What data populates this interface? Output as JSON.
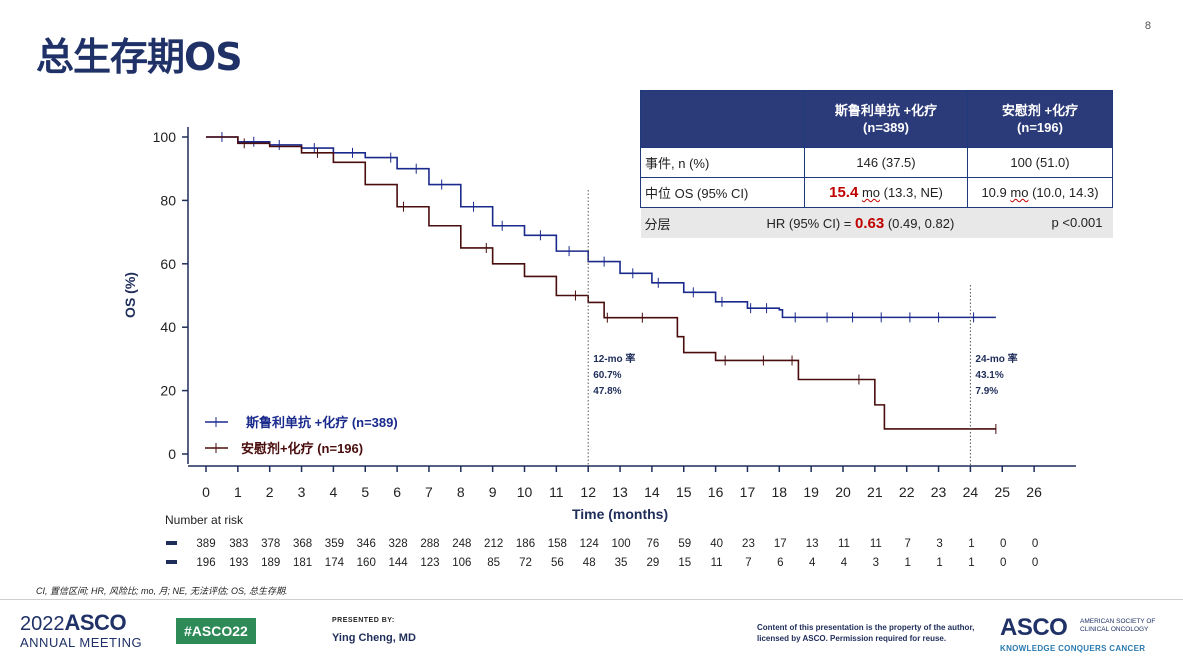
{
  "slide": {
    "title": "总生存期OS",
    "page_number": "8"
  },
  "table": {
    "headers": [
      "斯鲁利单抗 +化疗\n(n=389)",
      "安慰剂 +化疗\n(n=196)"
    ],
    "header1_line1": "斯鲁利单抗 +化疗",
    "header1_line2": "(n=389)",
    "header2_line1": "安慰剂 +化疗",
    "header2_line2": "(n=196)",
    "rows": [
      {
        "label": "事件, n (%)",
        "a": "146 (37.5)",
        "b": "100 (51.0)"
      },
      {
        "label": "中位 OS (95% CI)",
        "a_value": "15.4",
        "a_unit": "mo",
        "a_ci": "(13.3, NE)",
        "b_value": "10.9",
        "b_unit": "mo",
        "b_ci": "(10.0, 14.3)"
      }
    ],
    "strat_label": "分层",
    "hr_prefix": "HR (95% CI) = ",
    "hr_value": "0.63",
    "hr_ci": "(0.49, 0.82)",
    "p_value": "p <0.001"
  },
  "chart_data": {
    "type": "line",
    "subtype": "kaplan-meier",
    "ylabel": "OS (%)",
    "xlabel": "Time (months)",
    "xlim": [
      0,
      27
    ],
    "ylim": [
      0,
      100
    ],
    "x_ticks": [
      "0",
      "1",
      "2",
      "3",
      "4",
      "5",
      "6",
      "7",
      "8",
      "9",
      "10",
      "11",
      "12",
      "13",
      "14",
      "15",
      "16",
      "17",
      "18",
      "19",
      "20",
      "21",
      "22",
      "23",
      "24",
      "25",
      "26"
    ],
    "y_ticks": [
      "0",
      "20",
      "40",
      "60",
      "80",
      "100"
    ],
    "series": [
      {
        "name": "斯鲁利单抗 +化疗 (n=389)",
        "color": "#1a2a8c",
        "points": [
          [
            0,
            100
          ],
          [
            1,
            98.5
          ],
          [
            2,
            97.5
          ],
          [
            3,
            96.5
          ],
          [
            4,
            95
          ],
          [
            5,
            93.5
          ],
          [
            6,
            90
          ],
          [
            7,
            85
          ],
          [
            8,
            78
          ],
          [
            9,
            72
          ],
          [
            10,
            69
          ],
          [
            11,
            64
          ],
          [
            12,
            60.7
          ],
          [
            13,
            57
          ],
          [
            14,
            54
          ],
          [
            15,
            51
          ],
          [
            16,
            48
          ],
          [
            17,
            46
          ],
          [
            18,
            45.5
          ],
          [
            18.1,
            43.1
          ],
          [
            24.8,
            43.1
          ]
        ],
        "censor_x": [
          0.5,
          1.5,
          2.3,
          3.4,
          4.6,
          5.8,
          6.6,
          7.4,
          8.4,
          9.3,
          10.5,
          11.4,
          12.5,
          13.4,
          14.2,
          15.3,
          16.2,
          17.1,
          17.6,
          18.5,
          19.5,
          20.3,
          21.2,
          22.1,
          23.0,
          24.1
        ]
      },
      {
        "name": "安慰剂+化疗 (n=196)",
        "color": "#4a0d0d",
        "points": [
          [
            0,
            100
          ],
          [
            1,
            98
          ],
          [
            2,
            97
          ],
          [
            3,
            95
          ],
          [
            4,
            92
          ],
          [
            5,
            85
          ],
          [
            6,
            78
          ],
          [
            7,
            72
          ],
          [
            8,
            65
          ],
          [
            9,
            60
          ],
          [
            10,
            56
          ],
          [
            11,
            50
          ],
          [
            12,
            47.8
          ],
          [
            12.5,
            43
          ],
          [
            14.4,
            43
          ],
          [
            14.8,
            37
          ],
          [
            15,
            32
          ],
          [
            15.9,
            32
          ],
          [
            16,
            29.5
          ],
          [
            18.6,
            29.5
          ],
          [
            18.6,
            23.5
          ],
          [
            21.0,
            23.5
          ],
          [
            21.0,
            15.5
          ],
          [
            21.3,
            15.5
          ],
          [
            21.3,
            7.9
          ],
          [
            24.8,
            7.9
          ]
        ],
        "censor_x": [
          1.2,
          3.5,
          6.2,
          8.8,
          11.6,
          12.6,
          13.7,
          16.3,
          17.5,
          18.4,
          20.5,
          24.8
        ]
      }
    ],
    "annotations": [
      {
        "x": 12,
        "lines": [
          "12-mo 率",
          "60.7%",
          "47.8%"
        ]
      },
      {
        "x": 24,
        "lines": [
          "24-mo 率",
          "43.1%",
          "7.9%"
        ]
      }
    ],
    "legend": [
      "斯鲁利单抗 +化疗 (n=389)",
      "安慰剂+化疗 (n=196)"
    ],
    "risk_title": "Number at risk",
    "risk_a": [
      "389",
      "383",
      "378",
      "368",
      "359",
      "346",
      "328",
      "288",
      "248",
      "212",
      "186",
      "158",
      "124",
      "100",
      "76",
      "59",
      "40",
      "23",
      "17",
      "13",
      "11",
      "11",
      "7",
      "3",
      "1",
      "0",
      "0"
    ],
    "risk_b": [
      "196",
      "193",
      "189",
      "181",
      "174",
      "160",
      "144",
      "123",
      "106",
      "85",
      "72",
      "56",
      "48",
      "35",
      "29",
      "15",
      "11",
      "7",
      "6",
      "4",
      "4",
      "3",
      "1",
      "1",
      "1",
      "0",
      "0"
    ],
    "colors": {
      "axis": "#1f2d5a",
      "grid_ref": "#555555"
    }
  },
  "footnote": "CI, 置信区间; HR, 风险比; mo, 月; NE, 无法评估; OS, 总生存期.",
  "footer": {
    "year": "2022",
    "asco": "ASCO",
    "meeting": "ANNUAL MEETING",
    "hashtag": "#ASCO22",
    "presented_by": "PRESENTED BY:",
    "presenter": "Ying Cheng, MD",
    "copyright": "Content of this presentation is the property of the author, licensed by ASCO. Permission required for reuse.",
    "logo": "ASCO",
    "org": "AMERICAN SOCIETY OF CLINICAL ONCOLOGY",
    "tagline": "KNOWLEDGE CONQUERS CANCER"
  }
}
